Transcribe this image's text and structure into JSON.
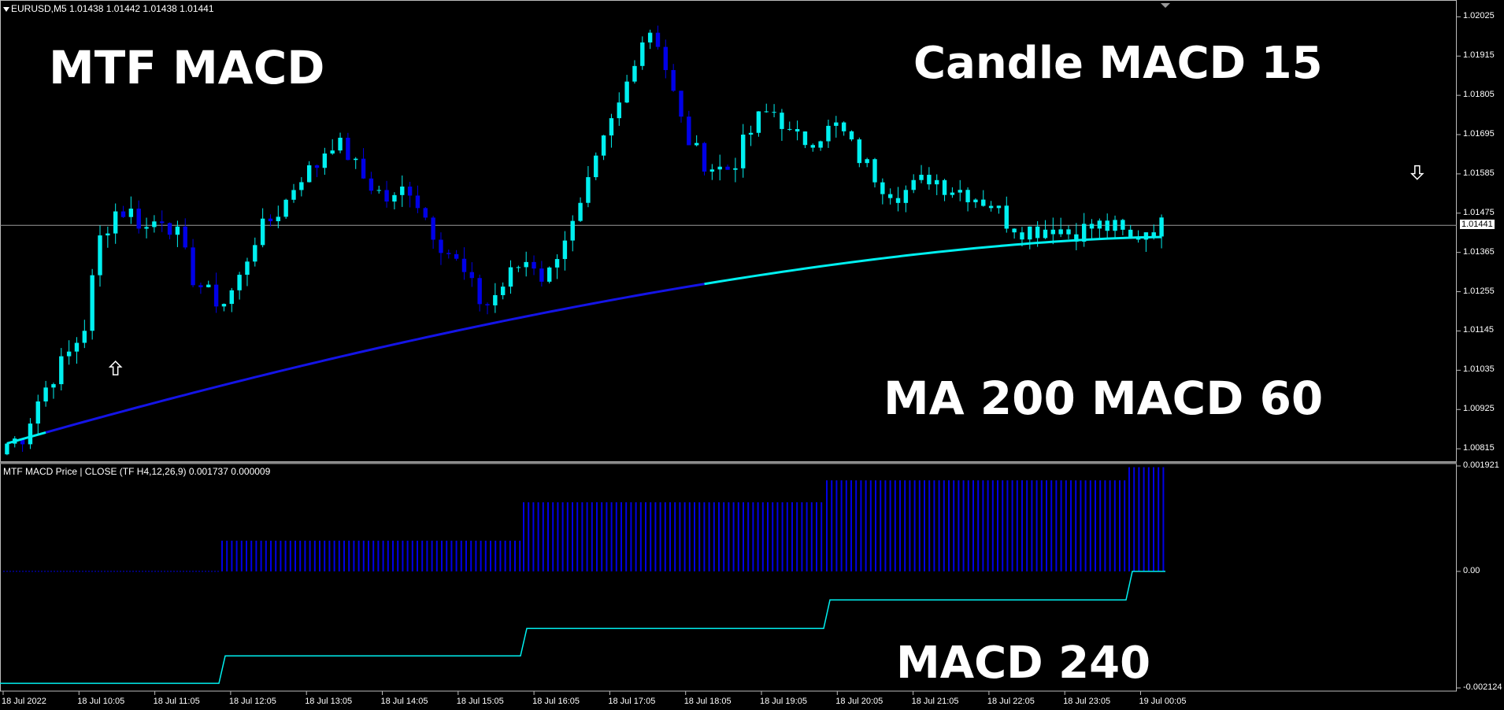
{
  "chart_header": {
    "symbol_line": "EURUSD,M5  1.01438 1.01442 1.01438 1.01441"
  },
  "indicator_header": "MTF MACD Price | CLOSE  (TF H4,12,26,9) 0.001737 0.000009",
  "annotations": {
    "top_left": "MTF MACD",
    "top_right": "Candle MACD 15",
    "middle_right": "MA 200 MACD 60",
    "bottom_right": "MACD 240"
  },
  "colors": {
    "background": "#000000",
    "bull_candle": "#00F0F0",
    "bear_candle": "#0000E6",
    "ma_blue": "#1414E6",
    "ma_cyan": "#00F0F0",
    "hist": "#0000E6",
    "signal": "#00F0F0",
    "axis": "#BBBBBB"
  },
  "chart_data": [
    {
      "type": "candlestick",
      "symbol": "EURUSD",
      "timeframe": "M5",
      "y_ticks": [
        "1.02025",
        "1.01915",
        "1.01805",
        "1.01695",
        "1.01585",
        "1.01475",
        "1.01365",
        "1.01255",
        "1.01145",
        "1.01035",
        "1.00925",
        "1.00815"
      ],
      "current_price": "1.01441",
      "ylim": [
        1.0078,
        1.0205
      ],
      "x_ticks": [
        "18 Jul 2022",
        "18 Jul 10:05",
        "18 Jul 11:05",
        "18 Jul 12:05",
        "18 Jul 13:05",
        "18 Jul 14:05",
        "18 Jul 15:05",
        "18 Jul 16:05",
        "18 Jul 17:05",
        "18 Jul 18:05",
        "18 Jul 19:05",
        "18 Jul 20:05",
        "18 Jul 21:05",
        "18 Jul 22:05",
        "18 Jul 23:05",
        "19 Jul 00:05"
      ],
      "close_path": [
        1.0083,
        1.0085,
        1.0095,
        1.0102,
        1.0108,
        1.0115,
        1.014,
        1.0148,
        1.0148,
        1.0143,
        1.0147,
        1.0142,
        1.013,
        1.0125,
        1.0122,
        1.0128,
        1.014,
        1.0145,
        1.015,
        1.0158,
        1.016,
        1.0168,
        1.0165,
        1.0158,
        1.0154,
        1.015,
        1.0156,
        1.0148,
        1.014,
        1.0135,
        1.0128,
        1.0121,
        1.0126,
        1.0132,
        1.0135,
        1.0128,
        1.014,
        1.0145,
        1.0158,
        1.017,
        1.018,
        1.0195,
        1.02,
        1.0185,
        1.017,
        1.0163,
        1.016,
        1.016,
        1.0168,
        1.0175,
        1.0176,
        1.0168,
        1.0168,
        1.017,
        1.0172,
        1.0165,
        1.016,
        1.0155,
        1.0153,
        1.0155,
        1.0158,
        1.0155,
        1.0154,
        1.0152,
        1.015,
        1.0145,
        1.0143,
        1.0143,
        1.0144,
        1.0142,
        1.0143,
        1.0144,
        1.0143,
        1.014,
        1.0143,
        1.0144
      ],
      "ma_period": 200,
      "arrows": [
        {
          "type": "up",
          "price": 1.0104,
          "index": 7
        },
        {
          "type": "down",
          "price": 1.0159,
          "index": 93
        }
      ]
    },
    {
      "type": "bar",
      "name": "MTF MACD Price | CLOSE (TF H4,12,26,9)",
      "y_ticks": [
        "0.001921",
        "0.00",
        "-0.002124"
      ],
      "ylim": [
        -0.002124,
        0.001921
      ],
      "segments": [
        {
          "hist": 0.0,
          "signal": -0.00204
        },
        {
          "hist": 0.00056,
          "signal": -0.00154
        },
        {
          "hist": 0.00126,
          "signal": -0.00104
        },
        {
          "hist": 0.00166,
          "signal": -0.00052
        },
        {
          "hist": 0.0019,
          "signal": 0.0
        }
      ]
    }
  ]
}
